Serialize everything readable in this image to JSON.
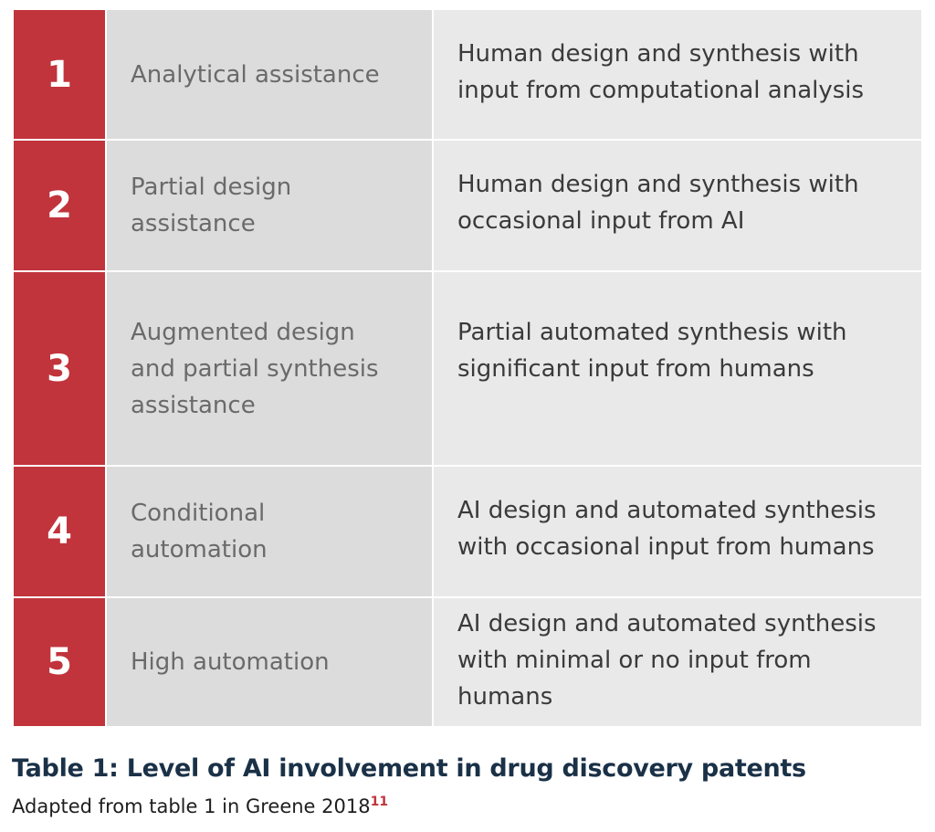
{
  "table": {
    "rows": [
      {
        "level": "1",
        "label": "Analytical assistance",
        "description": "Human design and synthesis with\ninput from computational analysis"
      },
      {
        "level": "2",
        "label": "Partial design\nassistance",
        "description": "Human design and synthesis with\noccasional input from AI"
      },
      {
        "level": "3",
        "label": "Augmented design\nand partial synthesis\nassistance",
        "description": "Partial automated synthesis with\nsignificant input from humans"
      },
      {
        "level": "4",
        "label": "Conditional\nautomation",
        "description": "AI design and automated synthesis\nwith occasional input from humans"
      },
      {
        "level": "5",
        "label": "High automation",
        "description": "AI design and automated synthesis\nwith minimal or no input from\nhumans"
      }
    ]
  },
  "caption": {
    "title": "Table 1: Level of AI involvement in drug discovery patents",
    "source": "Adapted from table 1 in Greene 2018",
    "footnote": "11"
  },
  "colors": {
    "accent_red": "#c1343c",
    "label_bg": "#dcdcdc",
    "desc_bg": "#e9e9e9",
    "caption_navy": "#1a3147"
  }
}
